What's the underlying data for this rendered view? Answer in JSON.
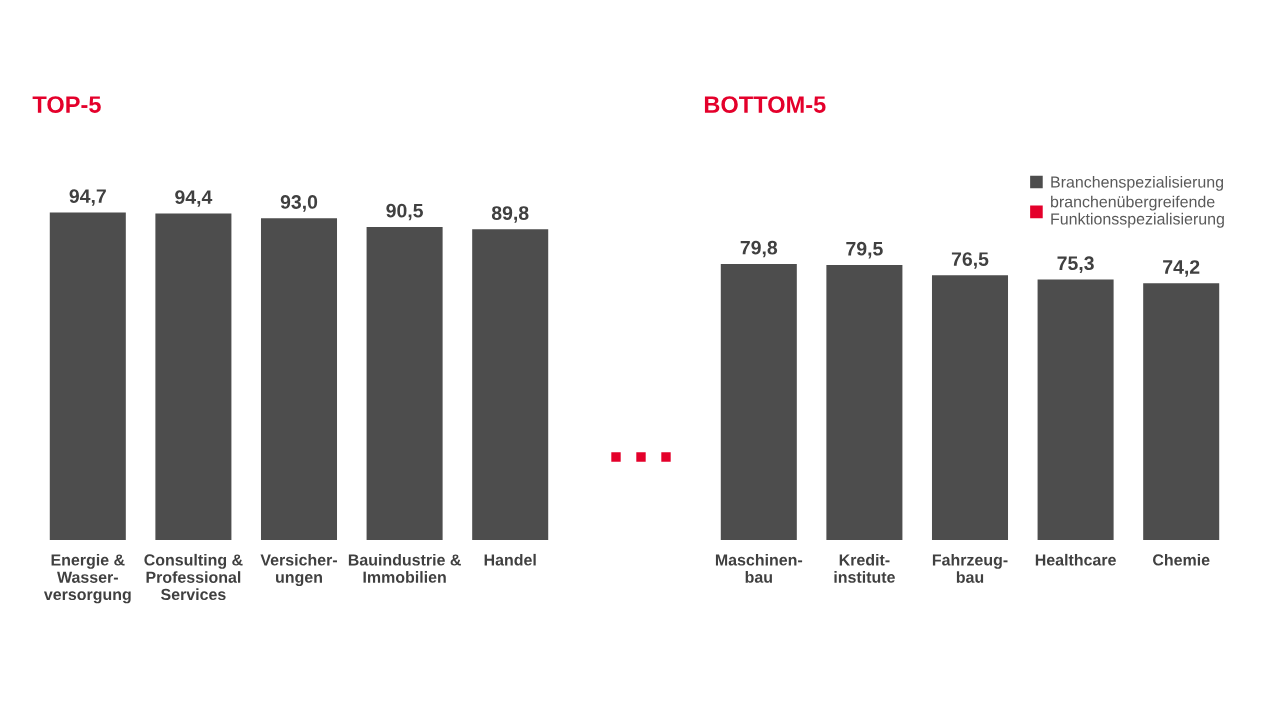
{
  "chart_data": [
    {
      "type": "bar",
      "title": "TOP-5",
      "categories": [
        "Energie &\nWasser-\nversorgung",
        "Consulting &\nProfessional\nServices",
        "Versicher-\nungen",
        "Bauindustrie &\nImmobilien",
        "Handel"
      ],
      "series": [
        {
          "color": "#4d4d4d",
          "values": [
            94.7,
            94.4,
            93.0,
            90.5,
            89.8
          ],
          "value_labels": [
            "94,7",
            "94,4",
            "93,0",
            "90,5",
            "89,8"
          ]
        }
      ],
      "tick_labels": "x",
      "grid": false
    },
    {
      "type": "bar",
      "title": "BOTTOM-5",
      "categories": [
        "Maschinen-\nbau",
        "Kredit-\ninstitute",
        "Fahrzeug-\nbau",
        "Healthcare",
        "Chemie"
      ],
      "series": [
        {
          "name": "Branchenspezialisierung",
          "color": "#4d4d4d",
          "values": [
            79.8,
            79.5,
            76.5,
            75.3,
            74.2
          ],
          "value_labels": [
            "79,8",
            "79,5",
            "76,5",
            "75,3",
            "74,2"
          ]
        },
        {
          "name": "branchenübergreifende\nFunktionsspezialisierung",
          "color": "#e4002b",
          "values": [
            null,
            null,
            null,
            null,
            null
          ]
        }
      ],
      "tick_labels": "x",
      "grid": false,
      "legend": "top right"
    }
  ]
}
